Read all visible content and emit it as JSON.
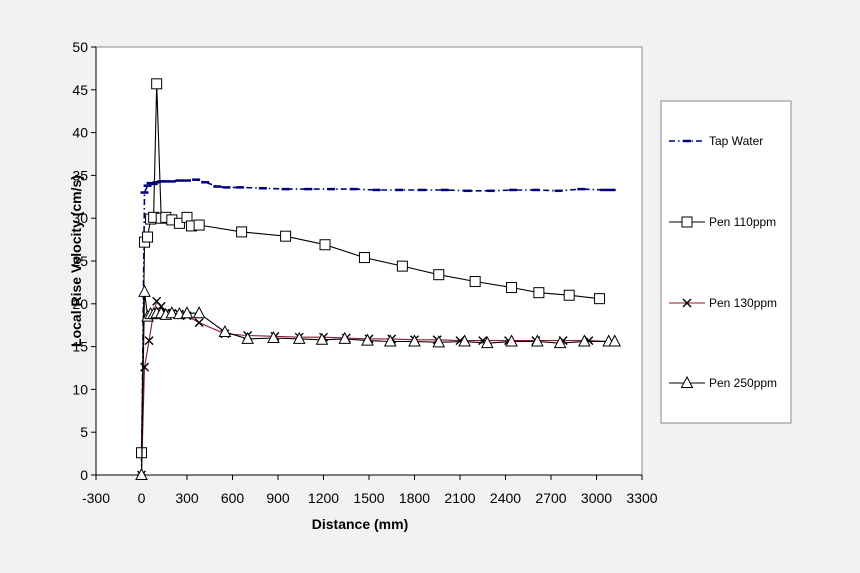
{
  "chart_data": {
    "type": "line",
    "title": "",
    "xlabel": "Distance (mm)",
    "ylabel": "Local Rise Velocity (cm/s)",
    "xlim": [
      -300,
      3300
    ],
    "ylim": [
      0,
      50
    ],
    "xticks": [
      -300,
      0,
      300,
      600,
      900,
      1200,
      1500,
      1800,
      2100,
      2400,
      2700,
      3000,
      3300
    ],
    "yticks": [
      0,
      5,
      10,
      15,
      20,
      25,
      30,
      35,
      40,
      45,
      50
    ],
    "legend_position": "right",
    "series": [
      {
        "name": "Tap Water",
        "color": "#000080",
        "style": "dash-dot",
        "marker": "dash",
        "x": [
          0,
          20,
          40,
          60,
          80,
          100,
          130,
          160,
          200,
          250,
          300,
          360,
          420,
          500,
          560,
          650,
          800,
          950,
          1100,
          1250,
          1400,
          1550,
          1700,
          1850,
          2000,
          2150,
          2300,
          2450,
          2600,
          2750,
          2900,
          3050,
          3100
        ],
        "y": [
          0,
          33.0,
          33.8,
          34.1,
          34.0,
          34.2,
          34.3,
          34.3,
          34.3,
          34.4,
          34.4,
          34.5,
          34.2,
          33.7,
          33.6,
          33.6,
          33.5,
          33.4,
          33.4,
          33.4,
          33.4,
          33.3,
          33.3,
          33.3,
          33.3,
          33.2,
          33.2,
          33.3,
          33.3,
          33.2,
          33.4,
          33.3,
          33.3
        ]
      },
      {
        "name": "Pen 110ppm",
        "color": "#000000",
        "style": "solid",
        "marker": "square",
        "x": [
          0,
          20,
          40,
          60,
          80,
          100,
          130,
          160,
          200,
          250,
          300,
          330,
          380,
          660,
          950,
          1210,
          1470,
          1720,
          1960,
          2200,
          2440,
          2620,
          2820,
          3020
        ],
        "y": [
          2.6,
          27.2,
          27.8,
          29.9,
          30.1,
          45.7,
          30.0,
          30.1,
          29.8,
          29.4,
          30.1,
          29.1,
          29.2,
          28.4,
          27.9,
          26.9,
          25.4,
          24.4,
          23.4,
          22.6,
          21.9,
          21.3,
          21.0,
          20.6
        ]
      },
      {
        "name": "Pen 130ppm",
        "color": "#8b1a2b",
        "style": "solid",
        "marker": "x",
        "x": [
          0,
          20,
          50,
          80,
          100,
          130,
          160,
          200,
          250,
          300,
          380,
          550,
          700,
          880,
          1040,
          1200,
          1350,
          1500,
          1650,
          1800,
          1950,
          2100,
          2250,
          2420,
          2600,
          2780,
          2950,
          3100
        ],
        "y": [
          0,
          12.6,
          15.7,
          19.0,
          20.3,
          19.7,
          18.9,
          18.9,
          18.8,
          18.6,
          17.8,
          16.5,
          16.3,
          16.2,
          16.1,
          16.1,
          16.0,
          15.9,
          15.9,
          15.8,
          15.8,
          15.7,
          15.7,
          15.7,
          15.7,
          15.7,
          15.7,
          15.6
        ]
      },
      {
        "name": "Pen 250ppm",
        "color": "#000000",
        "style": "solid",
        "marker": "triangle",
        "x": [
          0,
          20,
          40,
          60,
          80,
          100,
          130,
          160,
          200,
          250,
          300,
          380,
          550,
          700,
          870,
          1040,
          1190,
          1340,
          1490,
          1640,
          1800,
          1960,
          2130,
          2280,
          2440,
          2610,
          2760,
          2920,
          3080,
          3120
        ],
        "y": [
          0,
          21.4,
          18.5,
          18.8,
          18.8,
          18.9,
          18.9,
          18.7,
          18.9,
          18.8,
          18.9,
          18.9,
          16.7,
          15.9,
          16.0,
          15.9,
          15.8,
          15.9,
          15.7,
          15.6,
          15.6,
          15.5,
          15.6,
          15.4,
          15.6,
          15.6,
          15.4,
          15.6,
          15.6,
          15.6
        ]
      }
    ]
  }
}
